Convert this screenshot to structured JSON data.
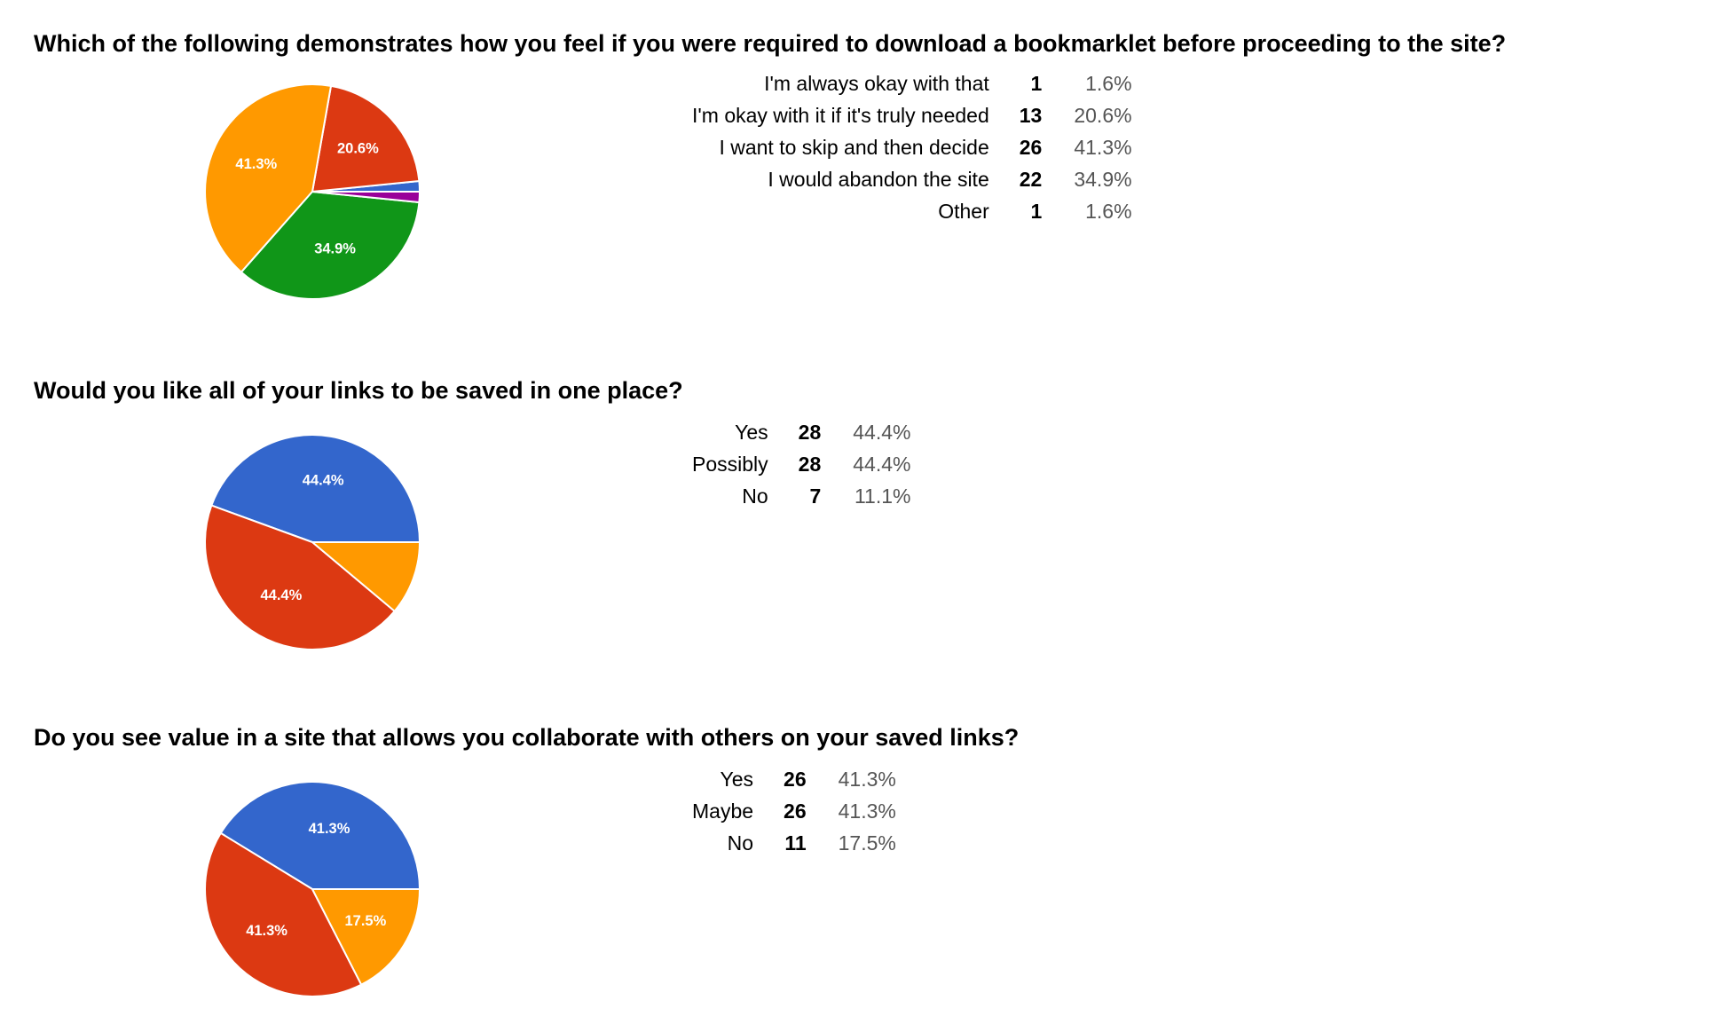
{
  "colors": {
    "blue": "#3366cc",
    "red": "#dc3912",
    "orange": "#ff9900",
    "green": "#109618",
    "purple": "#990099"
  },
  "questions": [
    {
      "title": "Which of the following demonstrates how you feel if you were required to download a bookmarklet before proceeding to the site?",
      "rows": [
        {
          "label": "I'm always okay with that",
          "count": "1",
          "percent": "1.6%"
        },
        {
          "label": "I'm okay with it if it's truly needed",
          "count": "13",
          "percent": "20.6%"
        },
        {
          "label": "I want to skip and then decide",
          "count": "26",
          "percent": "41.3%"
        },
        {
          "label": "I would abandon the site",
          "count": "22",
          "percent": "34.9%"
        },
        {
          "label": "Other",
          "count": "1",
          "percent": "1.6%"
        }
      ]
    },
    {
      "title": "Would you like all of your links to be saved in one place?",
      "rows": [
        {
          "label": "Yes",
          "count": "28",
          "percent": "44.4%"
        },
        {
          "label": "Possibly",
          "count": "28",
          "percent": "44.4%"
        },
        {
          "label": "No",
          "count": "7",
          "percent": "11.1%"
        }
      ]
    },
    {
      "title": "Do you see value in a site that allows you collaborate with others on your saved links?",
      "rows": [
        {
          "label": "Yes",
          "count": "26",
          "percent": "41.3%"
        },
        {
          "label": "Maybe",
          "count": "26",
          "percent": "41.3%"
        },
        {
          "label": "No",
          "count": "11",
          "percent": "17.5%"
        }
      ]
    }
  ],
  "chart_data": [
    {
      "type": "pie",
      "categories": [
        "I'm always okay with that",
        "I'm okay with it if it's truly needed",
        "I want to skip and then decide",
        "I would abandon the site",
        "Other"
      ],
      "values": [
        1,
        13,
        26,
        22,
        1
      ],
      "colors": [
        "#3366cc",
        "#dc3912",
        "#ff9900",
        "#109618",
        "#990099"
      ],
      "slice_labels": [
        "",
        "20.6%",
        "41.3%",
        "34.9%",
        ""
      ]
    },
    {
      "type": "pie",
      "categories": [
        "Yes",
        "Possibly",
        "No"
      ],
      "values": [
        28,
        28,
        7
      ],
      "colors": [
        "#3366cc",
        "#dc3912",
        "#ff9900"
      ],
      "slice_labels": [
        "44.4%",
        "44.4%",
        ""
      ]
    },
    {
      "type": "pie",
      "categories": [
        "Yes",
        "Maybe",
        "No"
      ],
      "values": [
        26,
        26,
        11
      ],
      "colors": [
        "#3366cc",
        "#dc3912",
        "#ff9900"
      ],
      "slice_labels": [
        "41.3%",
        "41.3%",
        "17.5%"
      ]
    }
  ]
}
